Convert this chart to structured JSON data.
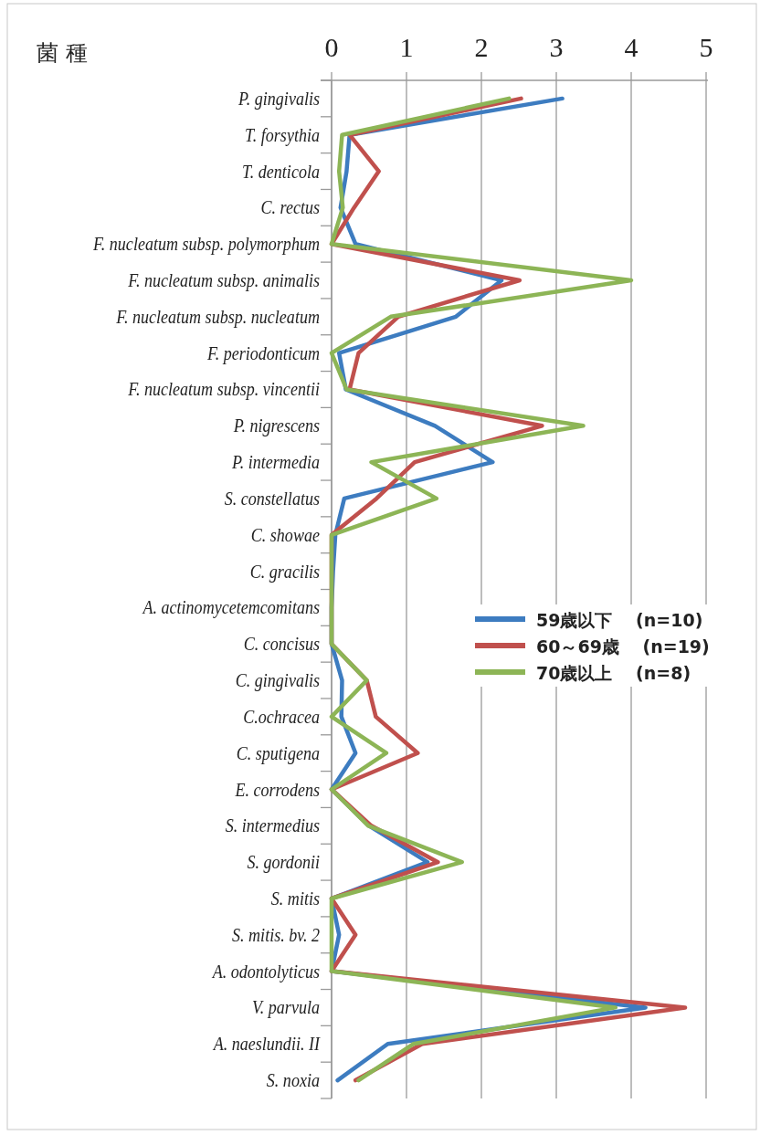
{
  "chart_data": {
    "type": "line",
    "orientation": "horizontal",
    "ylabel": "菌 種",
    "categories": [
      "P. gingivalis",
      "T. forsythia",
      "T. denticola",
      "C. rectus",
      "F. nucleatum subsp. polymorphum",
      "F. nucleatum subsp. animalis",
      "F. nucleatum subsp. nucleatum",
      "F. periodonticum",
      "F. nucleatum subsp. vincentii",
      "P. nigrescens",
      "P. intermedia",
      "S. constellatus",
      "C. showae",
      "C. gracilis",
      "A. actinomycetemcomitans",
      "C. concisus",
      "C. gingivalis",
      "C.ochracea",
      "C. sputigena",
      "E. corrodens",
      "S. intermedius",
      "S. gordonii",
      "S. mitis",
      "S. mitis. bv. 2",
      "A. odontolyticus",
      "V. parvula",
      "A. naeslundii. II",
      "S. noxia"
    ],
    "series": [
      {
        "name": "59歳以下　 (n=10)",
        "color": "#3d7cc0",
        "values": [
          3.08,
          0.24,
          0.2,
          0.12,
          0.32,
          2.27,
          1.66,
          0.1,
          0.19,
          1.38,
          2.15,
          0.17,
          0.05,
          0.02,
          0,
          0,
          0.14,
          0.13,
          0.32,
          0,
          0.5,
          1.28,
          0,
          0.1,
          0,
          4.19,
          0.75,
          0.08
        ]
      },
      {
        "name": "60～69歳　 (n=19)",
        "color": "#c0504d",
        "values": [
          2.53,
          0.24,
          0.63,
          0.3,
          0,
          2.51,
          0.89,
          0.36,
          0.24,
          2.81,
          1.11,
          0.6,
          0,
          0,
          0,
          0,
          0.47,
          0.59,
          1.15,
          0,
          0.53,
          1.42,
          0,
          0.32,
          0,
          4.72,
          1.21,
          0.32
        ]
      },
      {
        "name": "70歳以上　 (n=8)",
        "color": "#8db556",
        "values": [
          2.37,
          0.14,
          0.1,
          0.15,
          0,
          4.0,
          0.79,
          0,
          0.2,
          3.36,
          0.53,
          1.4,
          0,
          0,
          0,
          0,
          0.47,
          0,
          0.73,
          0,
          0.49,
          1.74,
          0,
          0,
          0,
          3.79,
          1.09,
          0.36
        ]
      }
    ],
    "xlim": [
      0,
      5
    ],
    "xticks": [
      0,
      1,
      2,
      3,
      4,
      5
    ],
    "grid": "x",
    "legend": "right",
    "line_style": "solid",
    "marker": "none"
  }
}
